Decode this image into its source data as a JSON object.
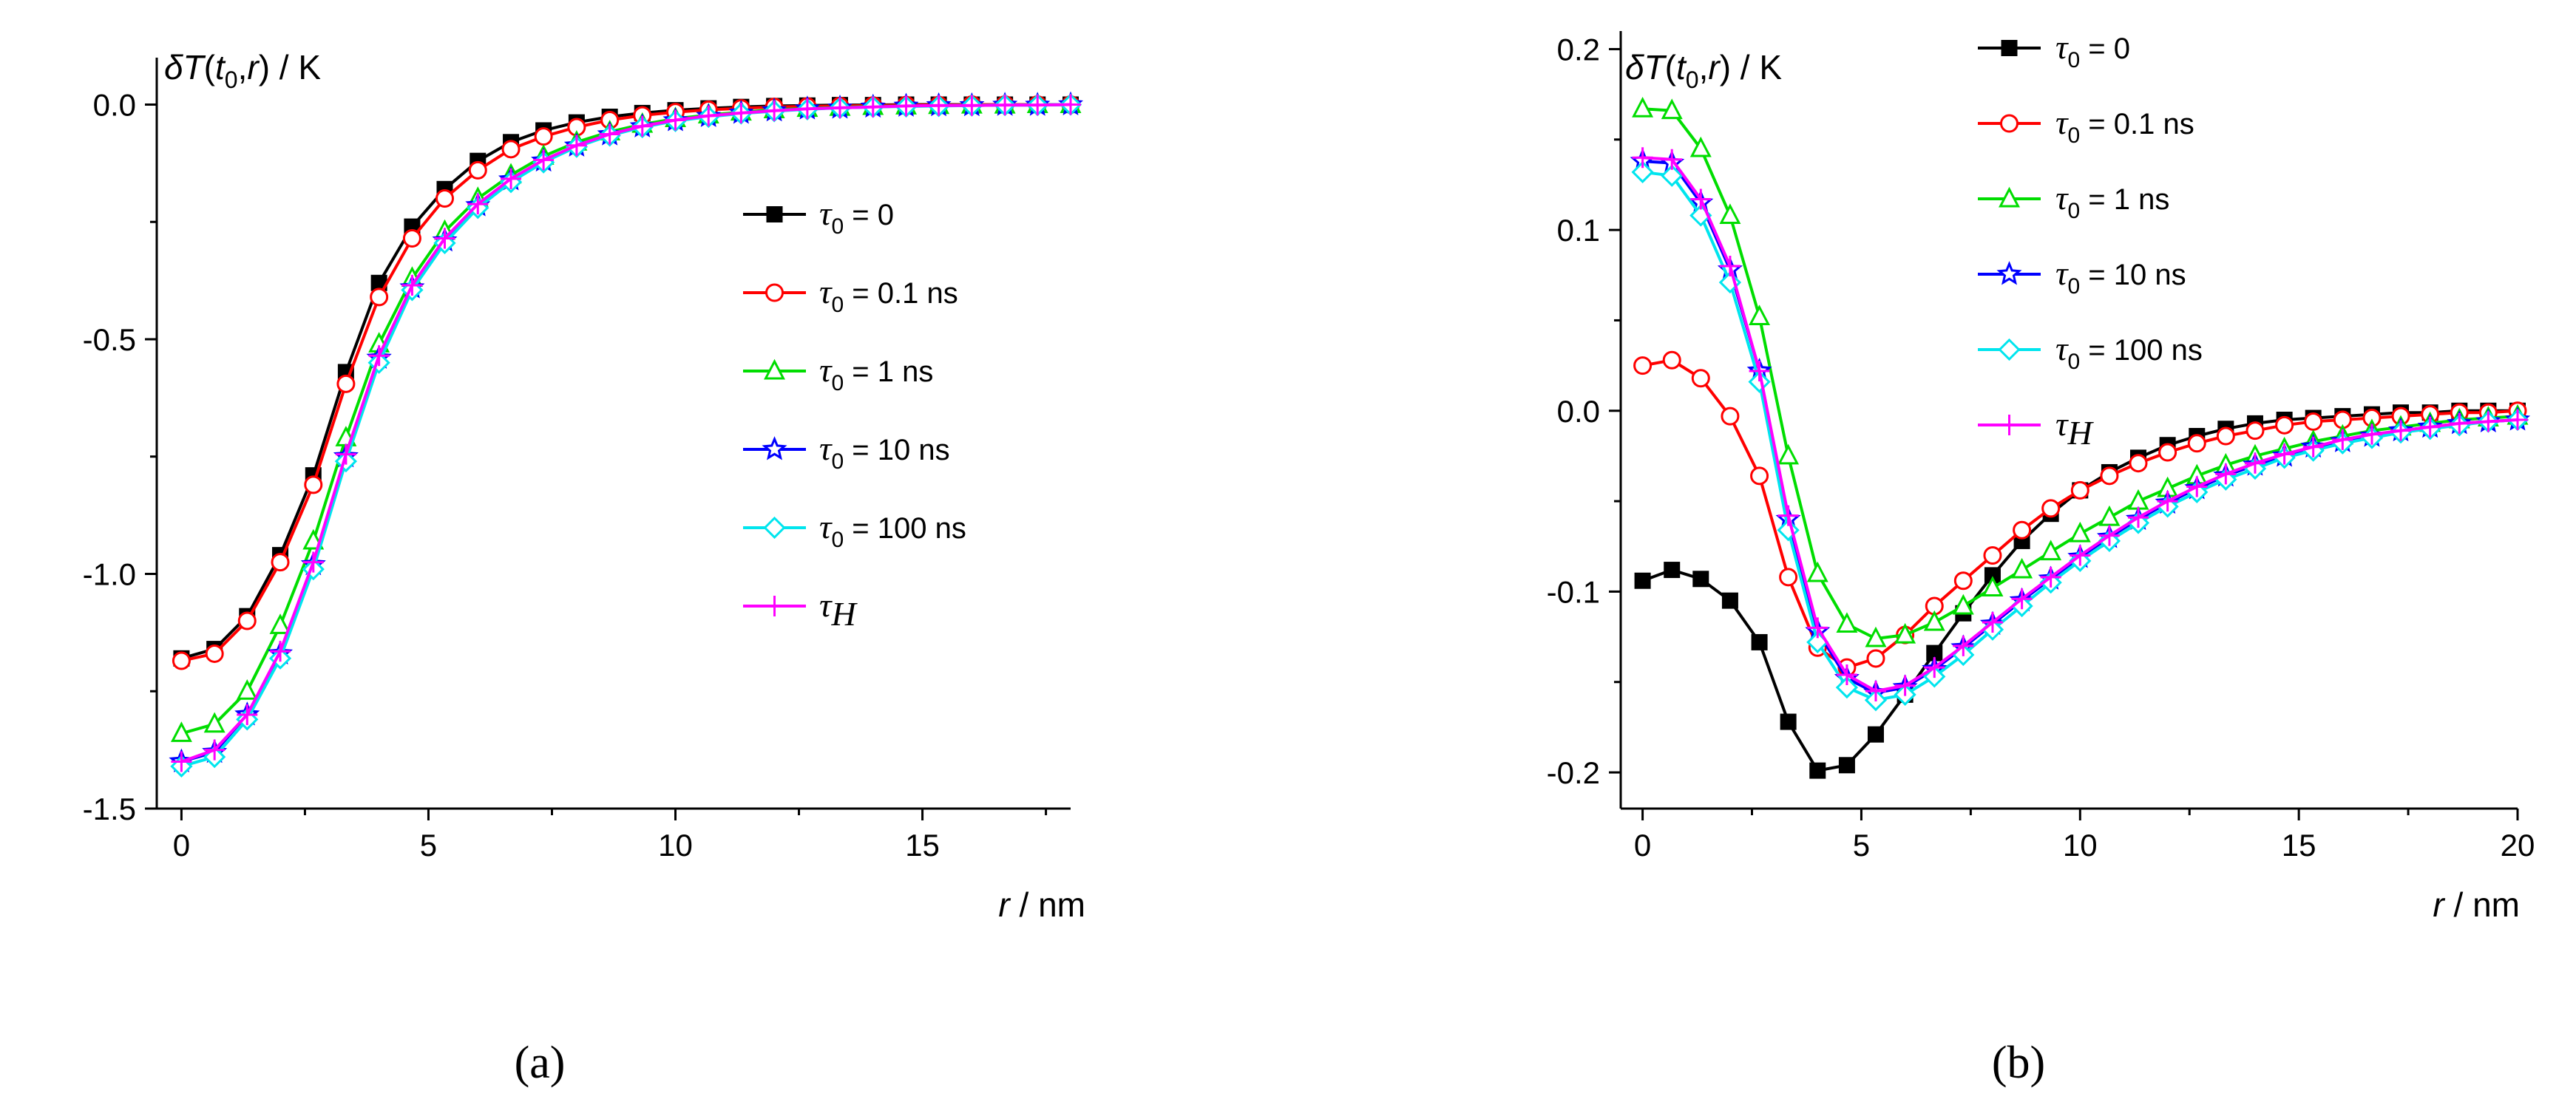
{
  "chart_data": [
    {
      "type": "line",
      "panel_label": "(a)",
      "title": "",
      "ylabel_parts": [
        "δT",
        "(",
        "t",
        "0",
        ",",
        "r",
        ") / K"
      ],
      "xlabel_parts": [
        "r",
        " / nm"
      ],
      "xlim": [
        -0.5,
        18
      ],
      "ylim": [
        -1.5,
        0.1
      ],
      "xticks": [
        0,
        5,
        10,
        15
      ],
      "xtick_labels": [
        "0",
        "5",
        "10",
        "15"
      ],
      "yticks": [
        0.0,
        -0.5,
        -1.0,
        -1.5
      ],
      "ytick_labels": [
        "0.0",
        "-0.5",
        "-1.0",
        "-1.5"
      ],
      "legend_position": "right-center",
      "x": [
        0,
        0.67,
        1.33,
        2,
        2.67,
        3.33,
        4,
        4.67,
        5.33,
        6,
        6.67,
        7.33,
        8,
        8.67,
        9.33,
        10,
        10.67,
        11.33,
        12,
        12.67,
        13.33,
        14,
        14.67,
        15.33,
        16,
        16.67,
        17.33,
        18
      ],
      "series": [
        {
          "name": "τ0 = 0",
          "label_parts": [
            "τ",
            "0",
            " = 0"
          ],
          "color": "#000000",
          "marker": "square-filled",
          "values": [
            -1.18,
            -1.16,
            -1.09,
            -0.96,
            -0.79,
            -0.57,
            -0.38,
            -0.26,
            -0.18,
            -0.12,
            -0.08,
            -0.055,
            -0.038,
            -0.026,
            -0.018,
            -0.012,
            -0.008,
            -0.005,
            -0.003,
            -0.002,
            -0.001,
            -0.001,
            0,
            0,
            0,
            0,
            0,
            0
          ]
        },
        {
          "name": "τ0 = 0.1 ns",
          "label_parts": [
            "τ",
            "0",
            " = 0.1 ns"
          ],
          "color": "#ff0000",
          "marker": "circle-open",
          "values": [
            -1.185,
            -1.17,
            -1.1,
            -0.975,
            -0.81,
            -0.595,
            -0.41,
            -0.285,
            -0.2,
            -0.14,
            -0.095,
            -0.068,
            -0.048,
            -0.033,
            -0.023,
            -0.016,
            -0.011,
            -0.008,
            -0.005,
            -0.004,
            -0.003,
            -0.002,
            -0.001,
            -0.001,
            0,
            0,
            0,
            0
          ]
        },
        {
          "name": "τ0 = 1 ns",
          "label_parts": [
            "τ",
            "0",
            " = 1 ns"
          ],
          "color": "#00dd00",
          "marker": "triangle-open",
          "values": [
            -1.34,
            -1.32,
            -1.25,
            -1.11,
            -0.93,
            -0.71,
            -0.51,
            -0.37,
            -0.27,
            -0.2,
            -0.15,
            -0.11,
            -0.08,
            -0.058,
            -0.042,
            -0.03,
            -0.022,
            -0.016,
            -0.011,
            -0.008,
            -0.006,
            -0.004,
            -0.003,
            -0.002,
            -0.001,
            -0.001,
            0,
            0
          ]
        },
        {
          "name": "τ0 = 10 ns",
          "label_parts": [
            "τ",
            "0",
            " = 10 ns"
          ],
          "color": "#0000ff",
          "marker": "star-open",
          "values": [
            -1.4,
            -1.38,
            -1.3,
            -1.17,
            -0.98,
            -0.75,
            -0.54,
            -0.39,
            -0.29,
            -0.215,
            -0.16,
            -0.12,
            -0.088,
            -0.064,
            -0.047,
            -0.034,
            -0.025,
            -0.018,
            -0.013,
            -0.009,
            -0.007,
            -0.005,
            -0.003,
            -0.002,
            -0.002,
            -0.001,
            -0.001,
            0
          ]
        },
        {
          "name": "τ0 = 100 ns",
          "label_parts": [
            "τ",
            "0",
            " = 100 ns"
          ],
          "color": "#00e5ee",
          "marker": "diamond-open",
          "values": [
            -1.41,
            -1.39,
            -1.31,
            -1.18,
            -0.99,
            -0.76,
            -0.55,
            -0.395,
            -0.295,
            -0.22,
            -0.165,
            -0.123,
            -0.09,
            -0.066,
            -0.048,
            -0.035,
            -0.026,
            -0.019,
            -0.014,
            -0.01,
            -0.007,
            -0.005,
            -0.004,
            -0.003,
            -0.002,
            -0.001,
            -0.001,
            0
          ]
        },
        {
          "name": "τH",
          "label_parts": [
            "τ",
            "H",
            ""
          ],
          "color": "#ff00ff",
          "marker": "plus",
          "values": [
            -1.4,
            -1.375,
            -1.3,
            -1.165,
            -0.975,
            -0.745,
            -0.535,
            -0.385,
            -0.285,
            -0.212,
            -0.158,
            -0.118,
            -0.087,
            -0.063,
            -0.046,
            -0.033,
            -0.024,
            -0.018,
            -0.013,
            -0.009,
            -0.007,
            -0.005,
            -0.003,
            -0.002,
            -0.002,
            -0.001,
            -0.001,
            0
          ]
        }
      ]
    },
    {
      "type": "line",
      "panel_label": "(b)",
      "title": "",
      "ylabel_parts": [
        "δT",
        "(",
        "t",
        "0",
        ",",
        "r",
        ") / K"
      ],
      "xlabel_parts": [
        "r",
        " / nm"
      ],
      "xlim": [
        -0.5,
        20
      ],
      "ylim": [
        -0.22,
        0.21
      ],
      "xticks": [
        0,
        5,
        10,
        15,
        20
      ],
      "xtick_labels": [
        "0",
        "5",
        "10",
        "15",
        "20"
      ],
      "yticks": [
        0.2,
        0.1,
        0.0,
        -0.1,
        -0.2
      ],
      "ytick_labels": [
        "0.2",
        "0.1",
        "0.0",
        "-0.1",
        "-0.2"
      ],
      "legend_position": "top-right",
      "x": [
        0,
        0.67,
        1.33,
        2,
        2.67,
        3.33,
        4,
        4.67,
        5.33,
        6,
        6.67,
        7.33,
        8,
        8.67,
        9.33,
        10,
        10.67,
        11.33,
        12,
        12.67,
        13.33,
        14,
        14.67,
        15.33,
        16,
        16.67,
        17.33,
        18,
        18.67,
        19.33,
        20
      ],
      "series": [
        {
          "name": "τ0 = 0",
          "label_parts": [
            "τ",
            "0",
            " = 0"
          ],
          "color": "#000000",
          "marker": "square-filled",
          "values": [
            -0.094,
            -0.088,
            -0.093,
            -0.105,
            -0.128,
            -0.172,
            -0.199,
            -0.196,
            -0.179,
            -0.157,
            -0.134,
            -0.112,
            -0.091,
            -0.072,
            -0.057,
            -0.044,
            -0.034,
            -0.026,
            -0.019,
            -0.014,
            -0.01,
            -0.007,
            -0.005,
            -0.004,
            -0.003,
            -0.002,
            -0.001,
            -0.001,
            0,
            0,
            0
          ]
        },
        {
          "name": "τ0 = 0.1 ns",
          "label_parts": [
            "τ",
            "0",
            " = 0.1 ns"
          ],
          "color": "#ff0000",
          "marker": "circle-open",
          "values": [
            0.025,
            0.028,
            0.018,
            -0.003,
            -0.036,
            -0.092,
            -0.131,
            -0.142,
            -0.137,
            -0.124,
            -0.108,
            -0.094,
            -0.08,
            -0.066,
            -0.054,
            -0.044,
            -0.036,
            -0.029,
            -0.023,
            -0.018,
            -0.014,
            -0.011,
            -0.008,
            -0.006,
            -0.005,
            -0.004,
            -0.003,
            -0.002,
            -0.001,
            -0.001,
            0
          ]
        },
        {
          "name": "τ0 = 1 ns",
          "label_parts": [
            "τ",
            "0",
            " = 1 ns"
          ],
          "color": "#00dd00",
          "marker": "triangle-open",
          "values": [
            0.167,
            0.166,
            0.145,
            0.108,
            0.052,
            -0.025,
            -0.09,
            -0.118,
            -0.126,
            -0.124,
            -0.117,
            -0.108,
            -0.098,
            -0.088,
            -0.078,
            -0.068,
            -0.059,
            -0.05,
            -0.043,
            -0.036,
            -0.03,
            -0.025,
            -0.021,
            -0.017,
            -0.014,
            -0.011,
            -0.009,
            -0.007,
            -0.005,
            -0.004,
            -0.003
          ]
        },
        {
          "name": "τ0 = 10 ns",
          "label_parts": [
            "τ",
            "0",
            " = 10 ns"
          ],
          "color": "#0000ff",
          "marker": "star-open",
          "values": [
            0.138,
            0.137,
            0.115,
            0.078,
            0.022,
            -0.06,
            -0.122,
            -0.148,
            -0.156,
            -0.153,
            -0.143,
            -0.131,
            -0.118,
            -0.105,
            -0.093,
            -0.081,
            -0.07,
            -0.06,
            -0.051,
            -0.043,
            -0.036,
            -0.03,
            -0.025,
            -0.02,
            -0.017,
            -0.014,
            -0.011,
            -0.009,
            -0.007,
            -0.006,
            -0.005
          ]
        },
        {
          "name": "τ0 = 100 ns",
          "label_parts": [
            "τ",
            "0",
            " = 100 ns"
          ],
          "color": "#00e5ee",
          "marker": "diamond-open",
          "values": [
            0.132,
            0.13,
            0.108,
            0.071,
            0.016,
            -0.066,
            -0.128,
            -0.153,
            -0.16,
            -0.157,
            -0.147,
            -0.135,
            -0.121,
            -0.108,
            -0.095,
            -0.083,
            -0.072,
            -0.062,
            -0.053,
            -0.045,
            -0.038,
            -0.032,
            -0.026,
            -0.022,
            -0.018,
            -0.015,
            -0.012,
            -0.01,
            -0.008,
            -0.006,
            -0.005
          ]
        },
        {
          "name": "τH",
          "label_parts": [
            "τ",
            "H",
            ""
          ],
          "color": "#ff00ff",
          "marker": "plus",
          "values": [
            0.14,
            0.139,
            0.117,
            0.08,
            0.022,
            -0.058,
            -0.12,
            -0.146,
            -0.155,
            -0.152,
            -0.142,
            -0.13,
            -0.117,
            -0.104,
            -0.092,
            -0.08,
            -0.069,
            -0.059,
            -0.05,
            -0.042,
            -0.035,
            -0.029,
            -0.024,
            -0.02,
            -0.016,
            -0.013,
            -0.011,
            -0.009,
            -0.007,
            -0.006,
            -0.005
          ]
        }
      ]
    }
  ]
}
